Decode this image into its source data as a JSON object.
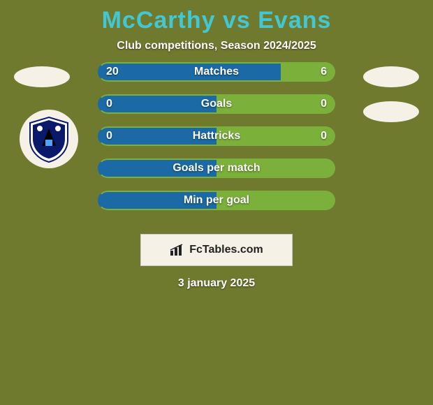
{
  "background_color": "#6f7a2f",
  "title": {
    "text": "McCarthy vs Evans",
    "color": "#42c8d4",
    "fontsize": 34,
    "fontweight": 900
  },
  "subtitle": {
    "text": "Club competitions, Season 2024/2025",
    "color": "#ffffff",
    "fontsize": 16
  },
  "bar_style": {
    "height": 28,
    "radius": 14,
    "gap": 18,
    "border_color_left": "#1b6aa5",
    "border_color_right": "#7bb03a",
    "fill_color_left": "#1b6aa5",
    "fill_color_right": "#7bb03a",
    "label_color": "#ffffff",
    "label_fontsize": 16
  },
  "bars": [
    {
      "label": "Matches",
      "left_value": "20",
      "right_value": "6",
      "left_pct": 77,
      "right_pct": 23,
      "show_values": true
    },
    {
      "label": "Goals",
      "left_value": "0",
      "right_value": "0",
      "left_pct": 50,
      "right_pct": 50,
      "show_values": true
    },
    {
      "label": "Hattricks",
      "left_value": "0",
      "right_value": "0",
      "left_pct": 50,
      "right_pct": 50,
      "show_values": true
    },
    {
      "label": "Goals per match",
      "left_value": "",
      "right_value": "",
      "left_pct": 50,
      "right_pct": 50,
      "show_values": false
    },
    {
      "label": "Min per goal",
      "left_value": "",
      "right_value": "",
      "left_pct": 50,
      "right_pct": 50,
      "show_values": false
    }
  ],
  "avatar_color": "#f5f1e6",
  "watermark": {
    "text": "FcTables.com",
    "bg": "#f5f1e6",
    "text_color": "#222222",
    "fontsize": 16
  },
  "date": {
    "text": "3 january 2025",
    "color": "#ffffff",
    "fontsize": 16
  },
  "crest": {
    "bg": "#f5f1e6",
    "shield_outer": "#ffffff",
    "shield_inner": "#0a1a6b",
    "accent": "#000000"
  }
}
